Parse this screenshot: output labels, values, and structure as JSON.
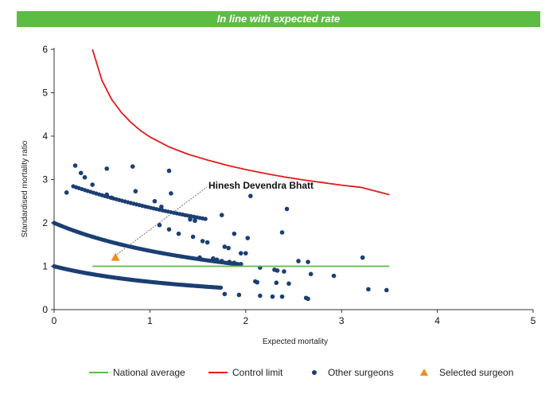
{
  "banner": {
    "text": "In line with expected rate",
    "color": "#5cbd45"
  },
  "chart_data": {
    "type": "scatter",
    "title": "",
    "xlabel": "Expected mortality",
    "ylabel": "Standardised mortality ratio",
    "xlim": [
      0,
      5
    ],
    "ylim": [
      0,
      6
    ],
    "xticks": [
      0,
      1,
      2,
      3,
      4,
      5
    ],
    "yticks": [
      0,
      1,
      2,
      3,
      4,
      5,
      6
    ],
    "grid": false,
    "legend_position": "bottom",
    "colors": {
      "national_average": "#5cbd45",
      "control_limit": "#e31b1b",
      "other_surgeons": "#1b3f73",
      "selected_surgeon": "#f08c1e"
    },
    "national_average": {
      "name": "National average",
      "x": [
        0.4,
        3.5
      ],
      "y": [
        1.0,
        1.0
      ]
    },
    "control_limit": {
      "name": "Control limit",
      "x": [
        0.4,
        0.5,
        0.6,
        0.7,
        0.8,
        0.9,
        1.0,
        1.2,
        1.4,
        1.6,
        1.8,
        2.0,
        2.2,
        2.4,
        2.6,
        2.8,
        3.0,
        3.2,
        3.5
      ],
      "y": [
        6.0,
        5.28,
        4.85,
        4.55,
        4.32,
        4.13,
        3.98,
        3.75,
        3.58,
        3.45,
        3.33,
        3.23,
        3.14,
        3.06,
        2.99,
        2.93,
        2.87,
        2.82,
        2.65
      ]
    },
    "other_surgeons": {
      "name": "Other surgeons",
      "curves": [
        {
          "k": 1,
          "x_min": 0.0,
          "x_max": 1.75,
          "step": 0.012
        },
        {
          "k": 2,
          "x_min": 0.0,
          "x_max": 1.95,
          "step": 0.018
        },
        {
          "k": 3,
          "x_min": 0.2,
          "x_max": 1.6,
          "step": 0.03
        }
      ],
      "points": [
        [
          0.22,
          3.32
        ],
        [
          0.28,
          3.15
        ],
        [
          0.32,
          3.05
        ],
        [
          0.4,
          2.88
        ],
        [
          0.55,
          3.25
        ],
        [
          0.82,
          3.3
        ],
        [
          1.2,
          3.2
        ],
        [
          0.13,
          2.7
        ],
        [
          0.85,
          2.73
        ],
        [
          1.05,
          2.5
        ],
        [
          1.22,
          2.68
        ],
        [
          0.55,
          2.65
        ],
        [
          0.6,
          2.58
        ],
        [
          1.12,
          2.37
        ],
        [
          1.42,
          2.08
        ],
        [
          1.47,
          2.05
        ],
        [
          1.75,
          2.18
        ],
        [
          2.05,
          2.62
        ],
        [
          2.43,
          2.32
        ],
        [
          1.88,
          1.75
        ],
        [
          2.02,
          1.65
        ],
        [
          2.38,
          1.78
        ],
        [
          1.1,
          1.95
        ],
        [
          1.2,
          1.85
        ],
        [
          1.3,
          1.75
        ],
        [
          1.45,
          1.68
        ],
        [
          1.55,
          1.58
        ],
        [
          1.6,
          1.55
        ],
        [
          1.78,
          1.45
        ],
        [
          1.82,
          1.42
        ],
        [
          1.95,
          1.3
        ],
        [
          2.0,
          1.3
        ],
        [
          2.15,
          0.97
        ],
        [
          2.3,
          0.92
        ],
        [
          2.33,
          0.9
        ],
        [
          2.4,
          0.88
        ],
        [
          2.55,
          1.12
        ],
        [
          2.65,
          1.1
        ],
        [
          2.68,
          0.82
        ],
        [
          2.92,
          0.78
        ],
        [
          3.22,
          1.2
        ],
        [
          1.52,
          1.2
        ],
        [
          2.1,
          0.65
        ],
        [
          2.12,
          0.63
        ],
        [
          2.32,
          0.62
        ],
        [
          2.45,
          0.6
        ],
        [
          1.78,
          0.36
        ],
        [
          1.93,
          0.34
        ],
        [
          2.15,
          0.32
        ],
        [
          2.28,
          0.3
        ],
        [
          2.38,
          0.3
        ],
        [
          2.63,
          0.27
        ],
        [
          2.65,
          0.25
        ],
        [
          3.28,
          0.47
        ],
        [
          3.47,
          0.45
        ],
        [
          1.66,
          1.18
        ],
        [
          1.7,
          1.15
        ],
        [
          1.75,
          1.12
        ],
        [
          1.83,
          1.1
        ],
        [
          1.88,
          1.08
        ],
        [
          1.91,
          1.05
        ],
        [
          1.95,
          1.05
        ]
      ]
    },
    "selected_surgeon": {
      "name": "Selected surgeon",
      "x": 0.64,
      "y": 1.2,
      "label": "Hinesh Devendra Bhatt"
    },
    "legend": [
      {
        "key": "national_average",
        "label": "National average",
        "symbol": "line"
      },
      {
        "key": "control_limit",
        "label": "Control limit",
        "symbol": "line"
      },
      {
        "key": "other_surgeons",
        "label": "Other surgeons",
        "symbol": "dot"
      },
      {
        "key": "selected_surgeon",
        "label": "Selected surgeon",
        "symbol": "triangle"
      }
    ]
  }
}
